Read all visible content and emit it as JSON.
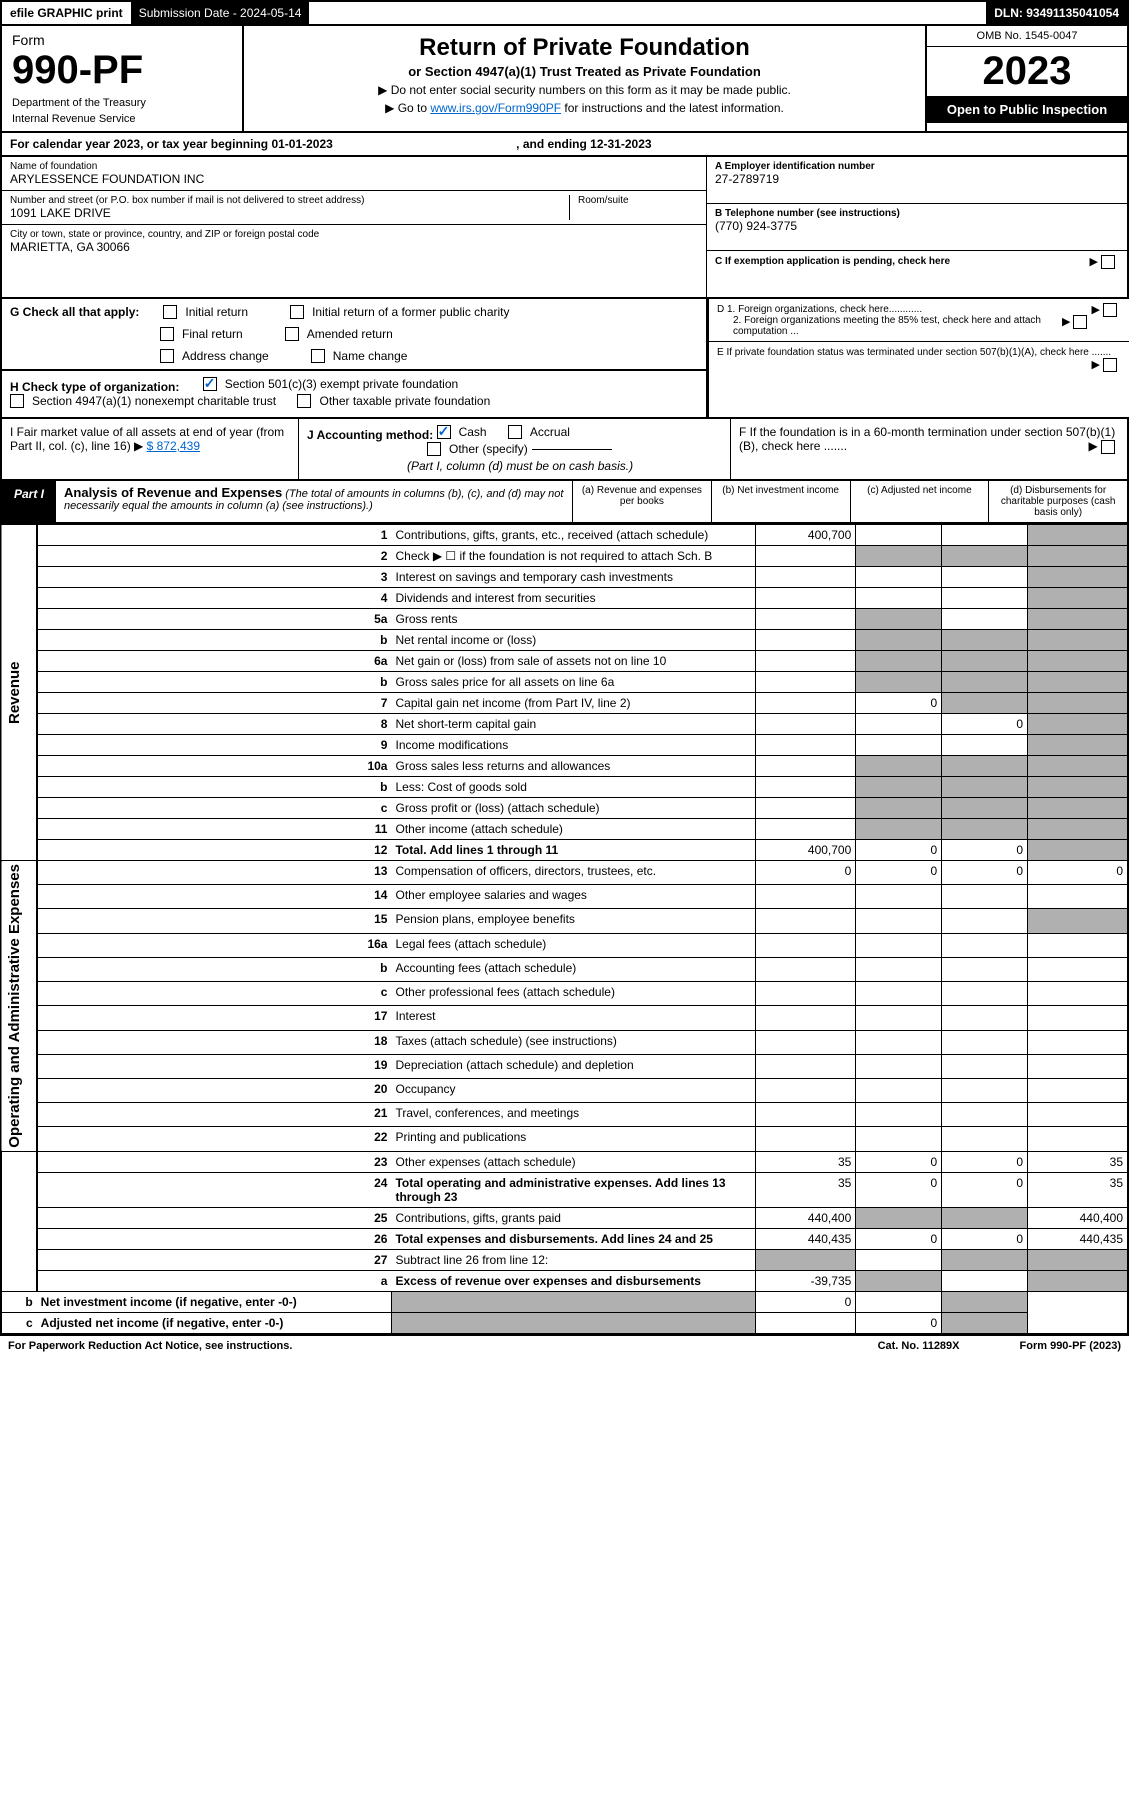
{
  "topbar": {
    "efile": "efile GRAPHIC print",
    "subdate_lbl": "Submission Date - 2024-05-14",
    "dln": "DLN: 93491135041054"
  },
  "header": {
    "form_word": "Form",
    "form_no": "990-PF",
    "dept": "Department of the Treasury",
    "irs": "Internal Revenue Service",
    "title": "Return of Private Foundation",
    "subtitle": "or Section 4947(a)(1) Trust Treated as Private Foundation",
    "note1": "▶ Do not enter social security numbers on this form as it may be made public.",
    "note2_pre": "▶ Go to ",
    "note2_link": "www.irs.gov/Form990PF",
    "note2_post": " for instructions and the latest information.",
    "omb": "OMB No. 1545-0047",
    "year": "2023",
    "open": "Open to Public Inspection"
  },
  "calyear": {
    "text": "For calendar year 2023, or tax year beginning 01-01-2023",
    "end": ", and ending 12-31-2023"
  },
  "info": {
    "name_lbl": "Name of foundation",
    "name": "ARYLESSENCE FOUNDATION INC",
    "addr_lbl": "Number and street (or P.O. box number if mail is not delivered to street address)",
    "room_lbl": "Room/suite",
    "addr": "1091 LAKE DRIVE",
    "city_lbl": "City or town, state or province, country, and ZIP or foreign postal code",
    "city": "MARIETTA, GA  30066",
    "a_lbl": "A Employer identification number",
    "a_val": "27-2789719",
    "b_lbl": "B Telephone number (see instructions)",
    "b_val": "(770) 924-3775",
    "c_lbl": "C If exemption application is pending, check here",
    "d1_lbl": "D 1. Foreign organizations, check here............",
    "d2_lbl": "2. Foreign organizations meeting the 85% test, check here and attach computation ...",
    "e_lbl": "E If private foundation status was terminated under section 507(b)(1)(A), check here .......",
    "f_lbl": "F If the foundation is in a 60-month termination under section 507(b)(1)(B), check here ......."
  },
  "g": {
    "lbl": "G Check all that apply:",
    "initial": "Initial return",
    "initial_former": "Initial return of a former public charity",
    "final": "Final return",
    "amended": "Amended return",
    "addr_change": "Address change",
    "name_change": "Name change"
  },
  "h": {
    "lbl": "H Check type of organization:",
    "c3": "Section 501(c)(3) exempt private foundation",
    "nc": "Section 4947(a)(1) nonexempt charitable trust",
    "other": "Other taxable private foundation"
  },
  "i": {
    "lbl": "I Fair market value of all assets at end of year (from Part II, col. (c), line 16) ▶",
    "amt": "$  872,439"
  },
  "j": {
    "lbl": "J Accounting method:",
    "cash": "Cash",
    "accrual": "Accrual",
    "other": "Other (specify)",
    "note": "(Part I, column (d) must be on cash basis.)"
  },
  "part1": {
    "lbl": "Part I",
    "title": "Analysis of Revenue and Expenses",
    "note": "(The total of amounts in columns (b), (c), and (d) may not necessarily equal the amounts in column (a) (see instructions).)",
    "colA": "(a) Revenue and expenses per books",
    "colB": "(b) Net investment income",
    "colC": "(c) Adjusted net income",
    "colD": "(d) Disbursements for charitable purposes (cash basis only)"
  },
  "side": {
    "rev": "Revenue",
    "exp": "Operating and Administrative Expenses"
  },
  "rows": [
    {
      "n": "1",
      "d": "Contributions, gifts, grants, etc., received (attach schedule)",
      "a": "400,700"
    },
    {
      "n": "2",
      "d": "Check ▶ ☐ if the foundation is not required to attach Sch. B"
    },
    {
      "n": "3",
      "d": "Interest on savings and temporary cash investments"
    },
    {
      "n": "4",
      "d": "Dividends and interest from securities"
    },
    {
      "n": "5a",
      "d": "Gross rents"
    },
    {
      "n": "b",
      "d": "Net rental income or (loss)"
    },
    {
      "n": "6a",
      "d": "Net gain or (loss) from sale of assets not on line 10"
    },
    {
      "n": "b",
      "d": "Gross sales price for all assets on line 6a"
    },
    {
      "n": "7",
      "d": "Capital gain net income (from Part IV, line 2)",
      "b": "0"
    },
    {
      "n": "8",
      "d": "Net short-term capital gain",
      "c": "0"
    },
    {
      "n": "9",
      "d": "Income modifications"
    },
    {
      "n": "10a",
      "d": "Gross sales less returns and allowances"
    },
    {
      "n": "b",
      "d": "Less: Cost of goods sold"
    },
    {
      "n": "c",
      "d": "Gross profit or (loss) (attach schedule)"
    },
    {
      "n": "11",
      "d": "Other income (attach schedule)"
    },
    {
      "n": "12",
      "d": "Total. Add lines 1 through 11",
      "a": "400,700",
      "b": "0",
      "c": "0",
      "bold": true
    },
    {
      "n": "13",
      "d": "Compensation of officers, directors, trustees, etc.",
      "a": "0",
      "b": "0",
      "c": "0",
      "dd": "0"
    },
    {
      "n": "14",
      "d": "Other employee salaries and wages"
    },
    {
      "n": "15",
      "d": "Pension plans, employee benefits"
    },
    {
      "n": "16a",
      "d": "Legal fees (attach schedule)"
    },
    {
      "n": "b",
      "d": "Accounting fees (attach schedule)"
    },
    {
      "n": "c",
      "d": "Other professional fees (attach schedule)"
    },
    {
      "n": "17",
      "d": "Interest"
    },
    {
      "n": "18",
      "d": "Taxes (attach schedule) (see instructions)"
    },
    {
      "n": "19",
      "d": "Depreciation (attach schedule) and depletion"
    },
    {
      "n": "20",
      "d": "Occupancy"
    },
    {
      "n": "21",
      "d": "Travel, conferences, and meetings"
    },
    {
      "n": "22",
      "d": "Printing and publications"
    },
    {
      "n": "23",
      "d": "Other expenses (attach schedule)",
      "a": "35",
      "b": "0",
      "c": "0",
      "dd": "35"
    },
    {
      "n": "24",
      "d": "Total operating and administrative expenses. Add lines 13 through 23",
      "a": "35",
      "b": "0",
      "c": "0",
      "dd": "35",
      "bold": true
    },
    {
      "n": "25",
      "d": "Contributions, gifts, grants paid",
      "a": "440,400",
      "dd": "440,400"
    },
    {
      "n": "26",
      "d": "Total expenses and disbursements. Add lines 24 and 25",
      "a": "440,435",
      "b": "0",
      "c": "0",
      "dd": "440,435",
      "bold": true
    },
    {
      "n": "27",
      "d": "Subtract line 26 from line 12:"
    },
    {
      "n": "a",
      "d": "Excess of revenue over expenses and disbursements",
      "a": "-39,735",
      "bold": true
    },
    {
      "n": "b",
      "d": "Net investment income (if negative, enter -0-)",
      "b": "0",
      "bold": true
    },
    {
      "n": "c",
      "d": "Adjusted net income (if negative, enter -0-)",
      "c": "0",
      "bold": true
    }
  ],
  "grey": {
    "b": [
      "1",
      "2",
      "5a",
      "b",
      "6a",
      "10a",
      "11",
      "19",
      "27",
      "a"
    ],
    "c": [
      "1",
      "2",
      "b",
      "6a",
      "b2",
      "7",
      "10a",
      "b3",
      "11",
      "27",
      "a",
      "b"
    ],
    "d": [
      "1",
      "2",
      "3",
      "4",
      "5a",
      "b",
      "6a",
      "b2",
      "7",
      "8",
      "9",
      "10a",
      "b3",
      "c",
      "11",
      "12",
      "19",
      "25g",
      "27",
      "a",
      "b",
      "c"
    ]
  },
  "footer": {
    "left": "For Paperwork Reduction Act Notice, see instructions.",
    "cat": "Cat. No. 11289X",
    "right": "Form 990-PF (2023)"
  }
}
